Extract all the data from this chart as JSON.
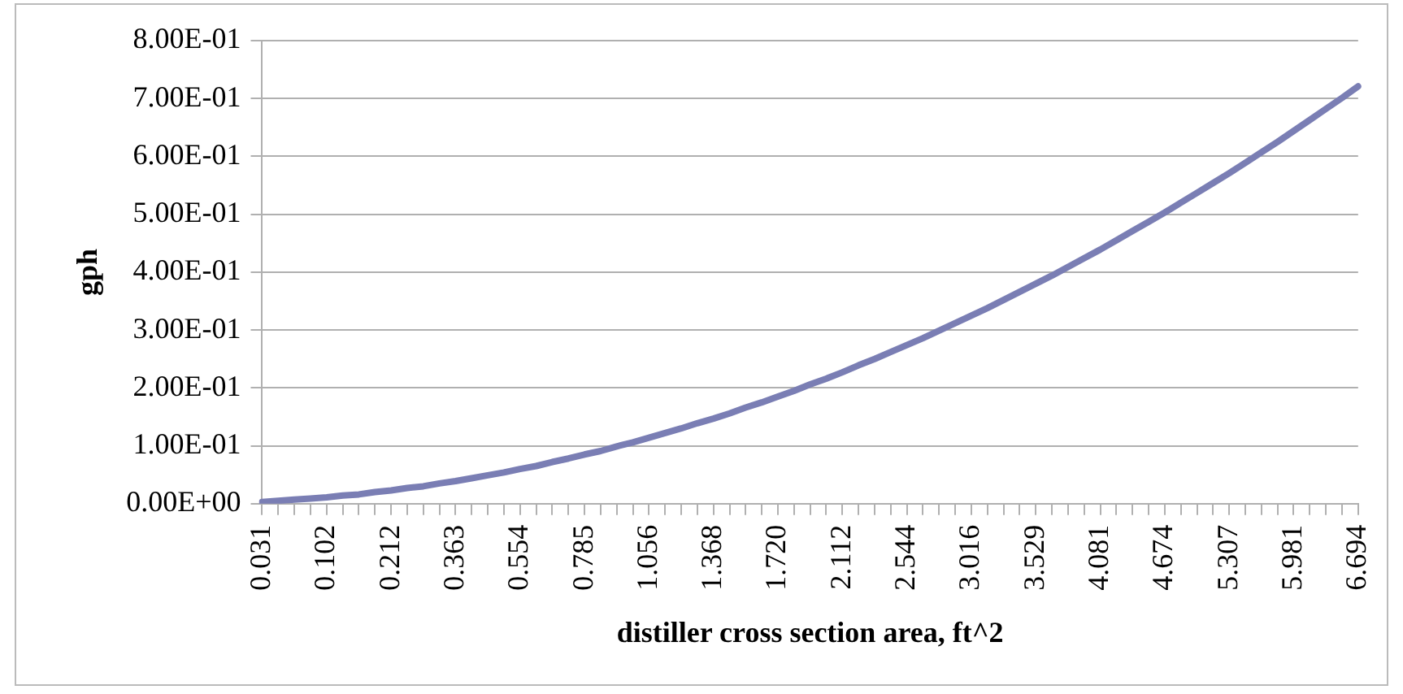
{
  "chart_data": {
    "type": "line",
    "xlabel": "distiller cross section area, ft^2",
    "ylabel": "gph",
    "categories": [
      "0.031",
      null,
      null,
      null,
      "0.102",
      null,
      null,
      null,
      "0.212",
      null,
      null,
      null,
      "0.363",
      null,
      null,
      null,
      "0.554",
      null,
      null,
      null,
      "0.785",
      null,
      null,
      null,
      "1.056",
      null,
      null,
      null,
      "1.368",
      null,
      null,
      null,
      "1.720",
      null,
      null,
      null,
      "2.112",
      null,
      null,
      null,
      "2.544",
      null,
      null,
      null,
      "3.016",
      null,
      null,
      null,
      "3.529",
      null,
      null,
      null,
      "4.081",
      null,
      null,
      null,
      "4.674",
      null,
      null,
      null,
      "5.307",
      null,
      null,
      null,
      "5.981",
      null,
      null,
      null,
      "6.694"
    ],
    "series": [
      {
        "color": "#7a7eb4",
        "values": [
          0.003,
          0.005,
          0.007,
          0.009,
          0.011,
          0.014,
          0.016,
          0.02,
          0.023,
          0.027,
          0.03,
          0.035,
          0.039,
          0.044,
          0.049,
          0.054,
          0.06,
          0.065,
          0.072,
          0.078,
          0.085,
          0.091,
          0.099,
          0.106,
          0.114,
          0.122,
          0.13,
          0.139,
          0.147,
          0.156,
          0.166,
          0.175,
          0.185,
          0.195,
          0.206,
          0.216,
          0.227,
          0.239,
          0.25,
          0.262,
          0.274,
          0.286,
          0.299,
          0.312,
          0.325,
          0.338,
          0.352,
          0.366,
          0.38,
          0.394,
          0.409,
          0.424,
          0.439,
          0.455,
          0.471,
          0.487,
          0.503,
          0.52,
          0.537,
          0.554,
          0.571,
          0.589,
          0.607,
          0.625,
          0.644,
          0.663,
          0.682,
          0.701,
          0.721
        ]
      }
    ],
    "ylim": [
      0,
      0.8
    ],
    "yticks": [
      {
        "value": 0,
        "label": "0.00E+00"
      },
      {
        "value": 0.1,
        "label": "1.00E-01"
      },
      {
        "value": 0.2,
        "label": "2.00E-01"
      },
      {
        "value": 0.3,
        "label": "3.00E-01"
      },
      {
        "value": 0.4,
        "label": "4.00E-01"
      },
      {
        "value": 0.5,
        "label": "5.00E-01"
      },
      {
        "value": 0.6,
        "label": "6.00E-01"
      },
      {
        "value": 0.7,
        "label": "7.00E-01"
      },
      {
        "value": 0.8,
        "label": "8.00E-01"
      }
    ],
    "grid": "y",
    "legend": false,
    "marker": "none",
    "line_style": "solid"
  }
}
